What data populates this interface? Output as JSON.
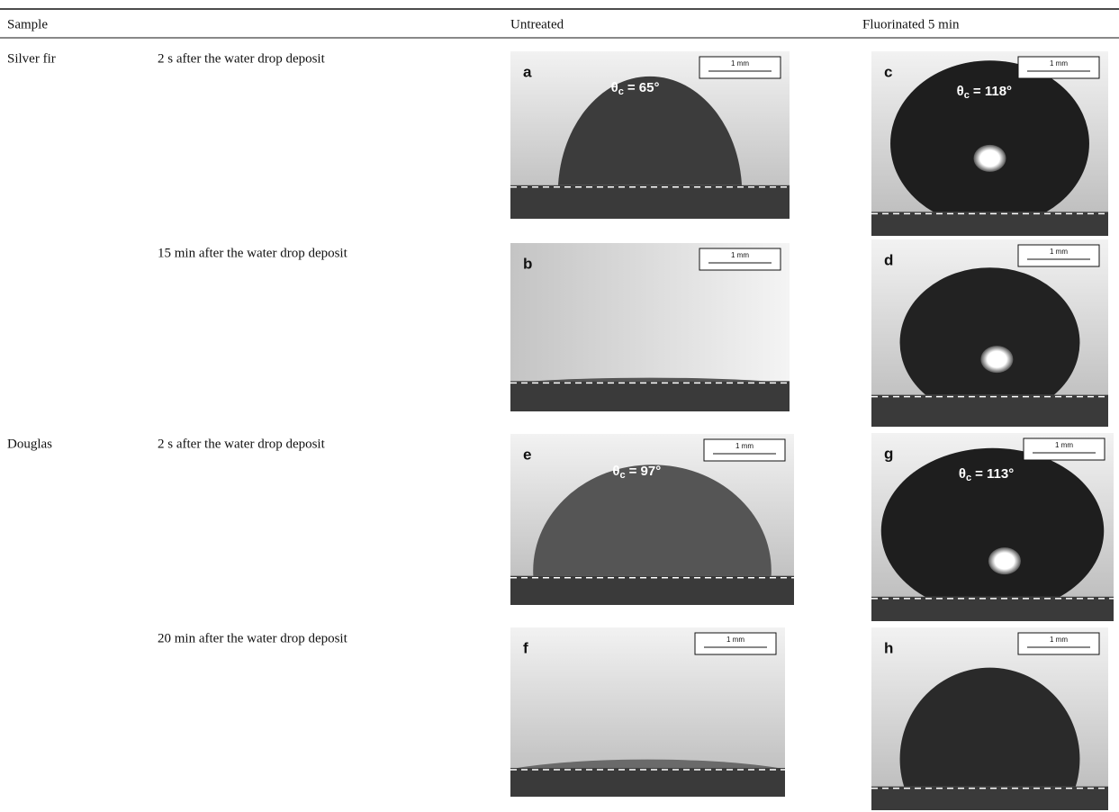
{
  "header": {
    "sample": "Sample",
    "untreated": "Untreated",
    "fluorinated": "Fluorinated 5 min"
  },
  "labels": {
    "angle_symbol": "θ",
    "angle_subscript": "c"
  },
  "rows": [
    {
      "sample": "Silver fir",
      "condition": "2 s after the water drop deposit",
      "untreated": {
        "panel": "a",
        "scale": "1 mm",
        "angle": "= 65°"
      },
      "fluorinated": {
        "panel": "c",
        "scale": "1 mm",
        "angle": "= 118°"
      }
    },
    {
      "condition": "15 min after the water drop deposit",
      "untreated": {
        "panel": "b",
        "scale": "1 mm"
      },
      "fluorinated": {
        "panel": "d",
        "scale": "1 mm"
      }
    },
    {
      "sample": "Douglas",
      "condition": "2 s after the water drop deposit",
      "untreated": {
        "panel": "e",
        "scale": "1 mm",
        "angle": "= 97°"
      },
      "fluorinated": {
        "panel": "g",
        "scale": "1 mm",
        "angle": "= 113°"
      }
    },
    {
      "condition": "20 min after the water drop deposit",
      "untreated": {
        "panel": "f",
        "scale": "1 mm"
      },
      "fluorinated": {
        "panel": "h",
        "scale": "1 mm"
      }
    }
  ]
}
